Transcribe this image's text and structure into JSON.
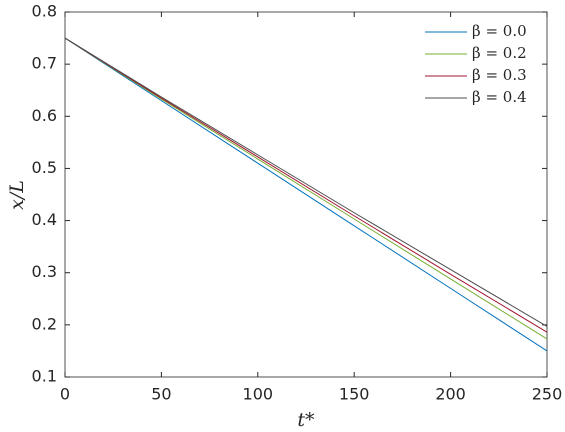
{
  "chart_data": {
    "type": "line",
    "x_label": "t*",
    "y_label": "x/L",
    "x": [
      0,
      50,
      100,
      150,
      200,
      250
    ],
    "series": [
      {
        "name": "β = 0.0",
        "color": "#0072bd",
        "values": [
          0.75,
          0.63,
          0.51,
          0.39,
          0.27,
          0.15
        ]
      },
      {
        "name": "β = 0.2",
        "color": "#77ac30",
        "values": [
          0.75,
          0.633,
          0.518,
          0.403,
          0.288,
          0.173
        ]
      },
      {
        "name": "β = 0.3",
        "color": "#a2142f",
        "values": [
          0.75,
          0.635,
          0.522,
          0.409,
          0.297,
          0.186
        ]
      },
      {
        "name": "β = 0.4",
        "color": "#4d4d4d",
        "values": [
          0.75,
          0.637,
          0.526,
          0.415,
          0.306,
          0.197
        ]
      }
    ],
    "xlim": [
      0,
      250
    ],
    "xticks": [
      0,
      50,
      100,
      150,
      200,
      250
    ],
    "ylim": [
      0.1,
      0.8
    ],
    "yticks": [
      0.1,
      0.2,
      0.3,
      0.4,
      0.5,
      0.6,
      0.7,
      0.8
    ],
    "grid": false,
    "legend": "northeast"
  }
}
